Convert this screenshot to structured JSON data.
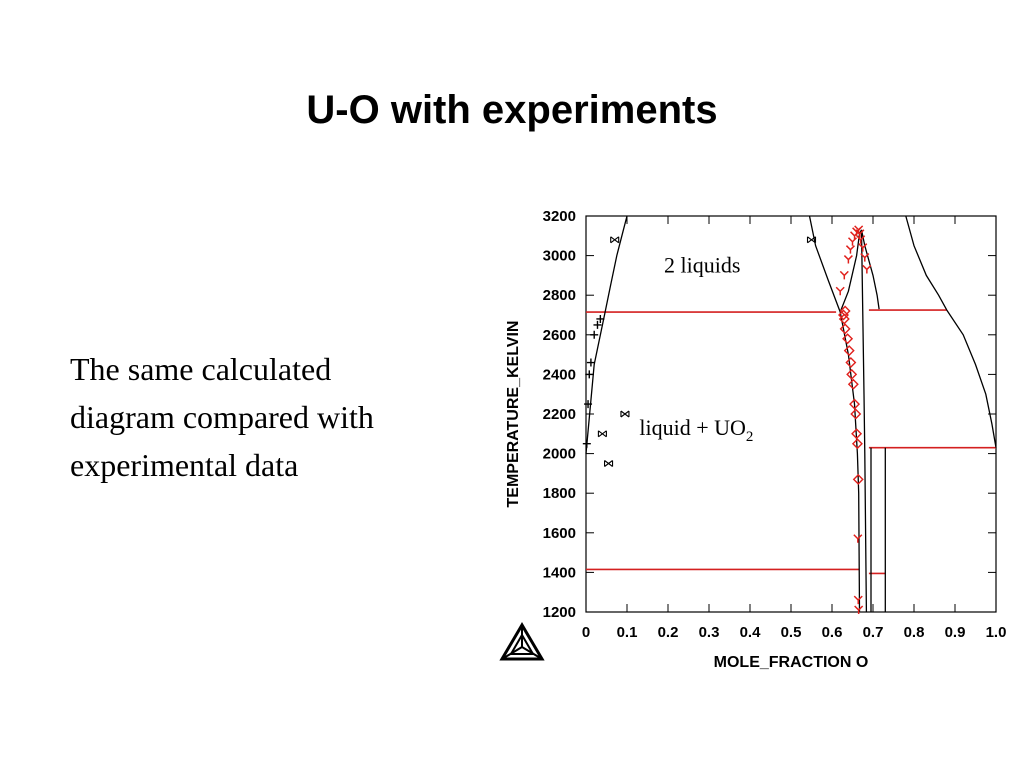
{
  "slide": {
    "title": "U-O with experiments",
    "body_lines": [
      "The same calculated",
      "diagram compared with",
      "experimental data"
    ]
  },
  "colors": {
    "experiment": "#e0201c",
    "phase_boundary": "#000000",
    "invariant": "#d42020"
  },
  "logo": {
    "icon": "thermo-calc-triangle-logo"
  },
  "chart_data": {
    "type": "scatter",
    "title": "",
    "xlabel": "MOLE_FRACTION O",
    "ylabel": "TEMPERATURE_KELVIN",
    "xlim": [
      0,
      1.0
    ],
    "ylim": [
      1200,
      3200
    ],
    "xticks": [
      "0",
      "0.1",
      "0.2",
      "0.3",
      "0.4",
      "0.5",
      "0.6",
      "0.7",
      "0.8",
      "0.9",
      "1.0"
    ],
    "yticks": [
      "1200",
      "1400",
      "1600",
      "1800",
      "2000",
      "2200",
      "2400",
      "2600",
      "2800",
      "3000",
      "3200"
    ],
    "grid": false,
    "region_labels": [
      {
        "id": "two-liquids",
        "text": "2 liquids",
        "x": 0.3,
        "y": 2950
      },
      {
        "id": "liquid-uo2",
        "text": "liquid + UO",
        "sub": "2",
        "x": 0.24,
        "y": 2130
      }
    ],
    "invariant_lines": [
      {
        "x": [
          0.0,
          0.61
        ],
        "y": 2715
      },
      {
        "x": [
          0.69,
          0.88
        ],
        "y": 2725
      },
      {
        "x": [
          0.69,
          1.0
        ],
        "y": 2030
      },
      {
        "x": [
          0.0,
          0.667
        ],
        "y": 1415
      },
      {
        "x": [
          0.69,
          0.73
        ],
        "y": 1395
      }
    ],
    "phase_boundaries": [
      {
        "name": "",
        "x": [
          0.0,
          0.02,
          0.045,
          0.06,
          0.075,
          0.09,
          0.1
        ],
        "y": [
          2000,
          2450,
          2700,
          2850,
          3000,
          3120,
          3200
        ]
      },
      {
        "name": "",
        "x": [
          0.545,
          0.56,
          0.59,
          0.61,
          0.62
        ],
        "y": [
          3200,
          3050,
          2880,
          2770,
          2715
        ]
      },
      {
        "name": "",
        "x": [
          0.62,
          0.64,
          0.66,
          0.667,
          0.672
        ],
        "y": [
          2715,
          2820,
          3000,
          3110,
          3130
        ]
      },
      {
        "name": "",
        "x": [
          0.672,
          0.68,
          0.7,
          0.71,
          0.715
        ],
        "y": [
          3130,
          3050,
          2900,
          2800,
          2730
        ]
      },
      {
        "name": "",
        "x": [
          0.62,
          0.64,
          0.655,
          0.662,
          0.665,
          0.666,
          0.667
        ],
        "y": [
          2715,
          2500,
          2250,
          2000,
          1800,
          1500,
          1200
        ]
      },
      {
        "name": "",
        "x": [
          0.672,
          0.675,
          0.678,
          0.68,
          0.682,
          0.684
        ],
        "y": [
          3130,
          2700,
          2300,
          2000,
          1600,
          1200
        ]
      },
      {
        "name": "",
        "x": [
          0.695,
          0.695
        ],
        "y": [
          1200,
          2030
        ]
      },
      {
        "name": "",
        "x": [
          0.73,
          0.73
        ],
        "y": [
          1200,
          2030
        ]
      },
      {
        "name": "",
        "x": [
          0.78,
          0.8,
          0.83,
          0.86,
          0.88
        ],
        "y": [
          3200,
          3050,
          2900,
          2800,
          2725
        ]
      },
      {
        "name": "",
        "x": [
          0.88,
          0.92,
          0.95,
          0.975,
          0.99,
          1.0
        ],
        "y": [
          2725,
          2600,
          2450,
          2300,
          2150,
          2030
        ]
      }
    ],
    "series": [
      {
        "name": "",
        "marker": "diamond",
        "x": [
          0.632,
          0.638,
          0.642,
          0.646,
          0.648,
          0.652,
          0.655,
          0.658,
          0.66,
          0.662,
          0.664,
          0.628,
          0.63,
          0.632
        ],
        "y": [
          2630,
          2580,
          2520,
          2460,
          2400,
          2350,
          2250,
          2200,
          2100,
          2050,
          1870,
          2700,
          2680,
          2720
        ]
      },
      {
        "name": "",
        "marker": "tri-down",
        "x": [
          0.62,
          0.63,
          0.64,
          0.645,
          0.65,
          0.655,
          0.66,
          0.665,
          0.668,
          0.67,
          0.675,
          0.68,
          0.685,
          0.663,
          0.664,
          0.665
        ],
        "y": [
          2820,
          2900,
          2980,
          3030,
          3070,
          3100,
          3120,
          3130,
          3110,
          3080,
          3040,
          2990,
          2930,
          1570,
          1260,
          1210
        ]
      },
      {
        "name": "",
        "marker": "plus",
        "x": [
          0.002,
          0.005,
          0.008,
          0.012,
          0.02,
          0.028,
          0.035
        ],
        "y": [
          2050,
          2250,
          2400,
          2460,
          2600,
          2650,
          2680
        ]
      },
      {
        "name": "",
        "marker": "open-misc",
        "x": [
          0.07,
          0.55,
          0.055,
          0.04,
          0.095
        ],
        "y": [
          3080,
          3080,
          1950,
          2100,
          2200
        ]
      }
    ]
  }
}
